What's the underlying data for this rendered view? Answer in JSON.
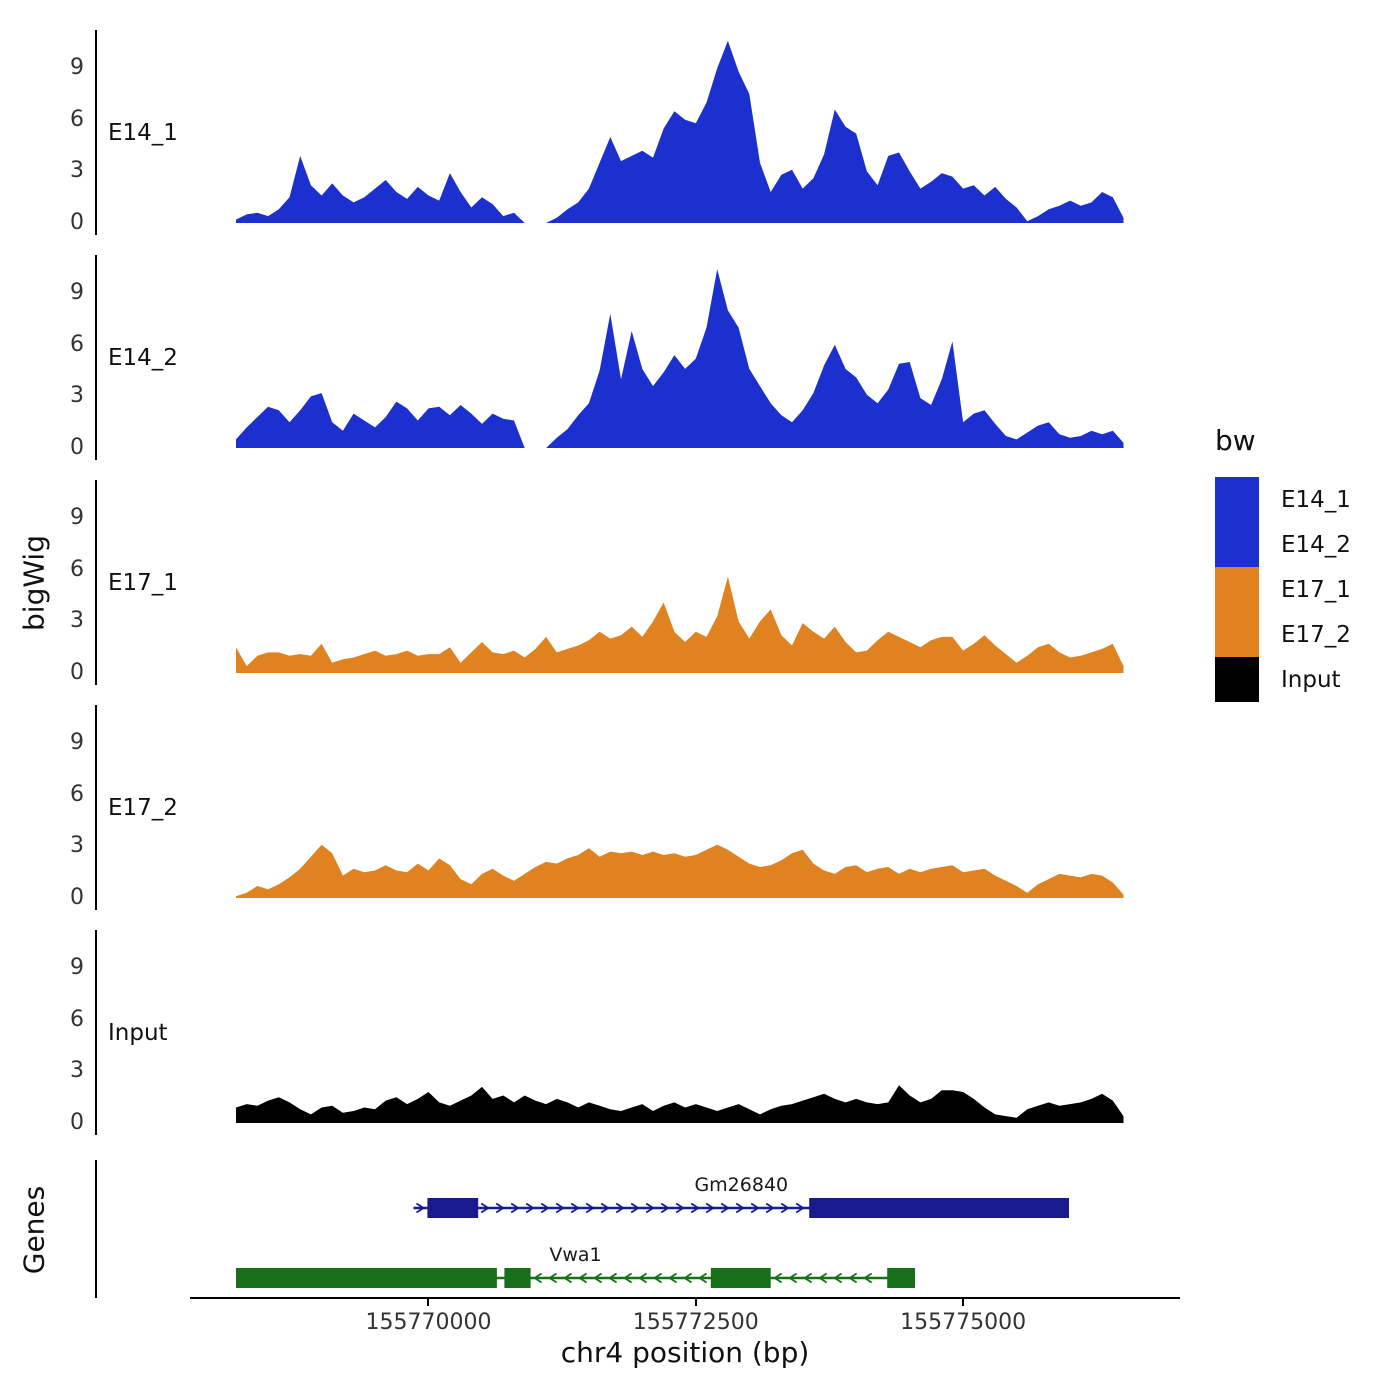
{
  "chart_data": {
    "type": "area",
    "title": "",
    "xlabel": "chr4 position (bp)",
    "ylabel": "bigWig",
    "grid": false,
    "x_range": [
      155766900,
      155777000
    ],
    "x_ticks": [
      155770000,
      155772500,
      155775000
    ],
    "x_tick_labels": [
      "155770000",
      "155772500",
      "155775000"
    ],
    "y_ticks": [
      0,
      3,
      6,
      9
    ],
    "y_max": 11.2,
    "sample_start_bp": 155768200,
    "sample_step_bp": 100,
    "tracks": [
      {
        "name": "E14_1",
        "color": "#1c30cf",
        "values": [
          0.2,
          0.5,
          0.6,
          0.4,
          0.8,
          1.5,
          3.9,
          2.2,
          1.6,
          2.3,
          1.6,
          1.2,
          1.5,
          2.0,
          2.5,
          1.8,
          1.4,
          2.1,
          1.6,
          1.3,
          2.9,
          1.8,
          0.9,
          1.5,
          1.1,
          0.4,
          0.6,
          0,
          0,
          0,
          0.3,
          0.8,
          1.2,
          2.0,
          3.5,
          5.0,
          3.6,
          3.9,
          4.2,
          3.8,
          5.5,
          6.5,
          6.0,
          5.8,
          7.0,
          9.0,
          10.6,
          8.8,
          7.5,
          3.5,
          1.8,
          2.8,
          3.1,
          2.0,
          2.6,
          4.0,
          6.6,
          5.6,
          5.2,
          3.0,
          2.2,
          3.9,
          4.1,
          3.0,
          2.0,
          2.4,
          2.9,
          2.7,
          2.0,
          2.2,
          1.6,
          2.1,
          1.4,
          0.9,
          0.1,
          0.4,
          0.8,
          1.0,
          1.3,
          1.0,
          1.2,
          1.8,
          1.5,
          0.3
        ]
      },
      {
        "name": "E14_2",
        "color": "#1c30cf",
        "values": [
          0.5,
          1.2,
          1.8,
          2.4,
          2.2,
          1.5,
          2.2,
          3.0,
          3.2,
          1.5,
          1.0,
          2.0,
          1.6,
          1.2,
          1.8,
          2.7,
          2.3,
          1.6,
          2.3,
          2.4,
          1.9,
          2.5,
          2.0,
          1.4,
          2.0,
          1.7,
          1.6,
          0,
          0,
          0,
          0.6,
          1.1,
          1.9,
          2.6,
          4.5,
          7.8,
          4.0,
          6.8,
          4.6,
          3.6,
          4.4,
          5.4,
          4.6,
          5.2,
          7.0,
          10.4,
          8.0,
          7.0,
          4.6,
          3.6,
          2.6,
          1.9,
          1.5,
          2.2,
          3.2,
          4.8,
          6.0,
          4.6,
          4.1,
          3.1,
          2.6,
          3.4,
          4.9,
          5.0,
          2.9,
          2.5,
          4.0,
          6.2,
          1.5,
          2.0,
          2.2,
          1.4,
          0.7,
          0.5,
          0.9,
          1.3,
          1.5,
          0.8,
          0.6,
          0.7,
          1.0,
          0.8,
          1.0,
          0.3
        ]
      },
      {
        "name": "E17_1",
        "color": "#e0821f",
        "values": [
          1.5,
          0.4,
          1.0,
          1.2,
          1.2,
          1.0,
          1.1,
          1.0,
          1.7,
          0.6,
          0.8,
          0.9,
          1.1,
          1.3,
          1.0,
          1.1,
          1.3,
          1.0,
          1.1,
          1.1,
          1.5,
          0.6,
          1.2,
          1.8,
          1.2,
          1.1,
          1.3,
          0.9,
          1.4,
          2.1,
          1.2,
          1.4,
          1.6,
          1.9,
          2.4,
          2.0,
          2.2,
          2.7,
          2.1,
          3.0,
          4.1,
          2.4,
          1.8,
          2.4,
          2.1,
          3.3,
          5.6,
          3.0,
          2.0,
          3.0,
          3.7,
          2.2,
          1.6,
          2.9,
          2.4,
          2.0,
          2.7,
          1.8,
          1.2,
          1.3,
          1.9,
          2.4,
          2.1,
          1.8,
          1.5,
          1.9,
          2.1,
          2.1,
          1.3,
          1.7,
          2.2,
          1.6,
          1.1,
          0.6,
          1.0,
          1.5,
          1.7,
          1.2,
          0.9,
          1.0,
          1.2,
          1.4,
          1.7,
          0.4
        ]
      },
      {
        "name": "E17_2",
        "color": "#e0821f",
        "values": [
          0.1,
          0.3,
          0.7,
          0.5,
          0.8,
          1.2,
          1.7,
          2.4,
          3.1,
          2.6,
          1.3,
          1.7,
          1.5,
          1.6,
          1.9,
          1.6,
          1.5,
          2.0,
          1.6,
          2.3,
          1.9,
          1.1,
          0.8,
          1.4,
          1.7,
          1.3,
          1.0,
          1.4,
          1.8,
          2.1,
          2.0,
          2.3,
          2.5,
          2.9,
          2.4,
          2.7,
          2.6,
          2.7,
          2.5,
          2.7,
          2.5,
          2.6,
          2.4,
          2.5,
          2.8,
          3.1,
          2.8,
          2.4,
          2.0,
          1.8,
          1.9,
          2.2,
          2.6,
          2.8,
          2.0,
          1.6,
          1.4,
          1.8,
          1.9,
          1.5,
          1.7,
          1.8,
          1.4,
          1.7,
          1.5,
          1.7,
          1.8,
          1.9,
          1.5,
          1.6,
          1.7,
          1.3,
          1.0,
          0.7,
          0.3,
          0.8,
          1.1,
          1.4,
          1.3,
          1.2,
          1.4,
          1.3,
          0.9,
          0.2
        ]
      },
      {
        "name": "Input",
        "color": "#000000",
        "values": [
          0.9,
          1.1,
          1.0,
          1.3,
          1.5,
          1.2,
          0.8,
          0.5,
          0.9,
          1.0,
          0.6,
          0.7,
          0.9,
          0.8,
          1.3,
          1.5,
          1.1,
          1.4,
          1.8,
          1.2,
          1.0,
          1.3,
          1.6,
          2.1,
          1.4,
          1.6,
          1.2,
          1.6,
          1.3,
          1.1,
          1.4,
          1.2,
          0.9,
          1.2,
          1.0,
          0.8,
          0.7,
          0.9,
          1.1,
          0.7,
          1.0,
          1.2,
          0.9,
          1.1,
          0.9,
          0.7,
          0.9,
          1.1,
          0.8,
          0.5,
          0.8,
          1.0,
          1.1,
          1.3,
          1.5,
          1.7,
          1.4,
          1.2,
          1.4,
          1.2,
          1.1,
          1.2,
          2.2,
          1.6,
          1.2,
          1.4,
          1.9,
          1.9,
          1.8,
          1.4,
          0.9,
          0.5,
          0.4,
          0.3,
          0.8,
          1.0,
          1.2,
          1.0,
          1.1,
          1.2,
          1.4,
          1.7,
          1.3,
          0.4
        ]
      }
    ],
    "genes": {
      "axis_label": "Genes",
      "items": [
        {
          "name": "Gm26840",
          "color": "#1a1a8f",
          "strand": "+",
          "line": [
            155769860,
            155775990
          ],
          "exons": [
            [
              155769990,
              155770465
            ],
            [
              155773560,
              155775990
            ]
          ]
        },
        {
          "name": "Vwa1",
          "color": "#177017",
          "strand": "-",
          "line": [
            155768200,
            155774550
          ],
          "exons": [
            [
              155768200,
              155770640
            ],
            [
              155770710,
              155770955
            ],
            [
              155772640,
              155773200
            ],
            [
              155774290,
              155774550
            ]
          ]
        }
      ]
    },
    "legend": {
      "title": "bw",
      "entries": [
        {
          "label": "E14_1",
          "color": "#1c30cf"
        },
        {
          "label": "E14_2",
          "color": "#1c30cf"
        },
        {
          "label": "E17_1",
          "color": "#e0821f"
        },
        {
          "label": "E17_2",
          "color": "#e0821f"
        },
        {
          "label": "Input",
          "color": "#000000"
        }
      ]
    }
  }
}
